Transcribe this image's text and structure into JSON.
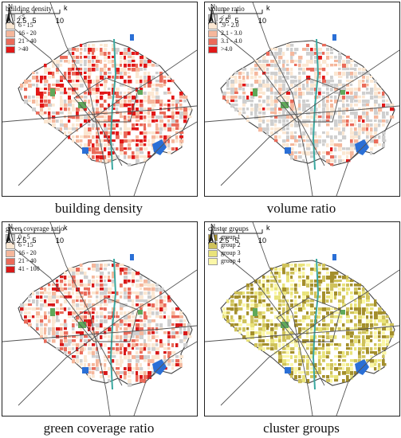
{
  "panels": [
    {
      "id": "building-density",
      "legend_title": "building density",
      "caption": "building density",
      "classes": [
        {
          "label": "<5",
          "color": "#cfcfcf"
        },
        {
          "label": "6 - 15",
          "color": "#fbe7d2"
        },
        {
          "label": "16 - 20",
          "color": "#f5b79c"
        },
        {
          "label": "21 - 40",
          "color": "#ea6b5a"
        },
        {
          "label": ">40",
          "color": "#e21818"
        }
      ]
    },
    {
      "id": "volume-ratio",
      "legend_title": "volume ratio",
      "caption": "volume ratio",
      "classes": [
        {
          "label": "< .8",
          "color": "#cfcfcf"
        },
        {
          "label": ".9 - 2.0",
          "color": "#fbe7d2"
        },
        {
          "label": "2.1 - 3.0",
          "color": "#f5b79c"
        },
        {
          "label": "3.1 - 4.0",
          "color": "#ea6b5a"
        },
        {
          "label": ">4.0",
          "color": "#e21818"
        }
      ]
    },
    {
      "id": "green-coverage-ratio",
      "legend_title": "green coverage ratio",
      "caption": "green coverage ratio",
      "classes": [
        {
          "label": "0 - 5",
          "color": "#cfcfcf"
        },
        {
          "label": "6 - 15",
          "color": "#fbe7d2"
        },
        {
          "label": "16 - 20",
          "color": "#f5b79c"
        },
        {
          "label": "21 - 40",
          "color": "#ea6b5a"
        },
        {
          "label": "41 - 100",
          "color": "#d81818"
        }
      ]
    },
    {
      "id": "cluster-groups",
      "legend_title": "cluster groups",
      "caption": "cluster groups",
      "classes": [
        {
          "label": "group 1",
          "color": "#a48f2c"
        },
        {
          "label": "group 2",
          "color": "#cfc25a"
        },
        {
          "label": "group 3",
          "color": "#e9e37a"
        },
        {
          "label": "group 4",
          "color": "#fbf7a8"
        }
      ]
    }
  ],
  "map": {
    "north_label": "N",
    "scale_unit": "km",
    "scale_ticks": [
      "0",
      "2.5",
      "5",
      "10"
    ],
    "water_color": "#2a6fd6",
    "park_color": "#5fa85a",
    "road_color": "#555555"
  }
}
